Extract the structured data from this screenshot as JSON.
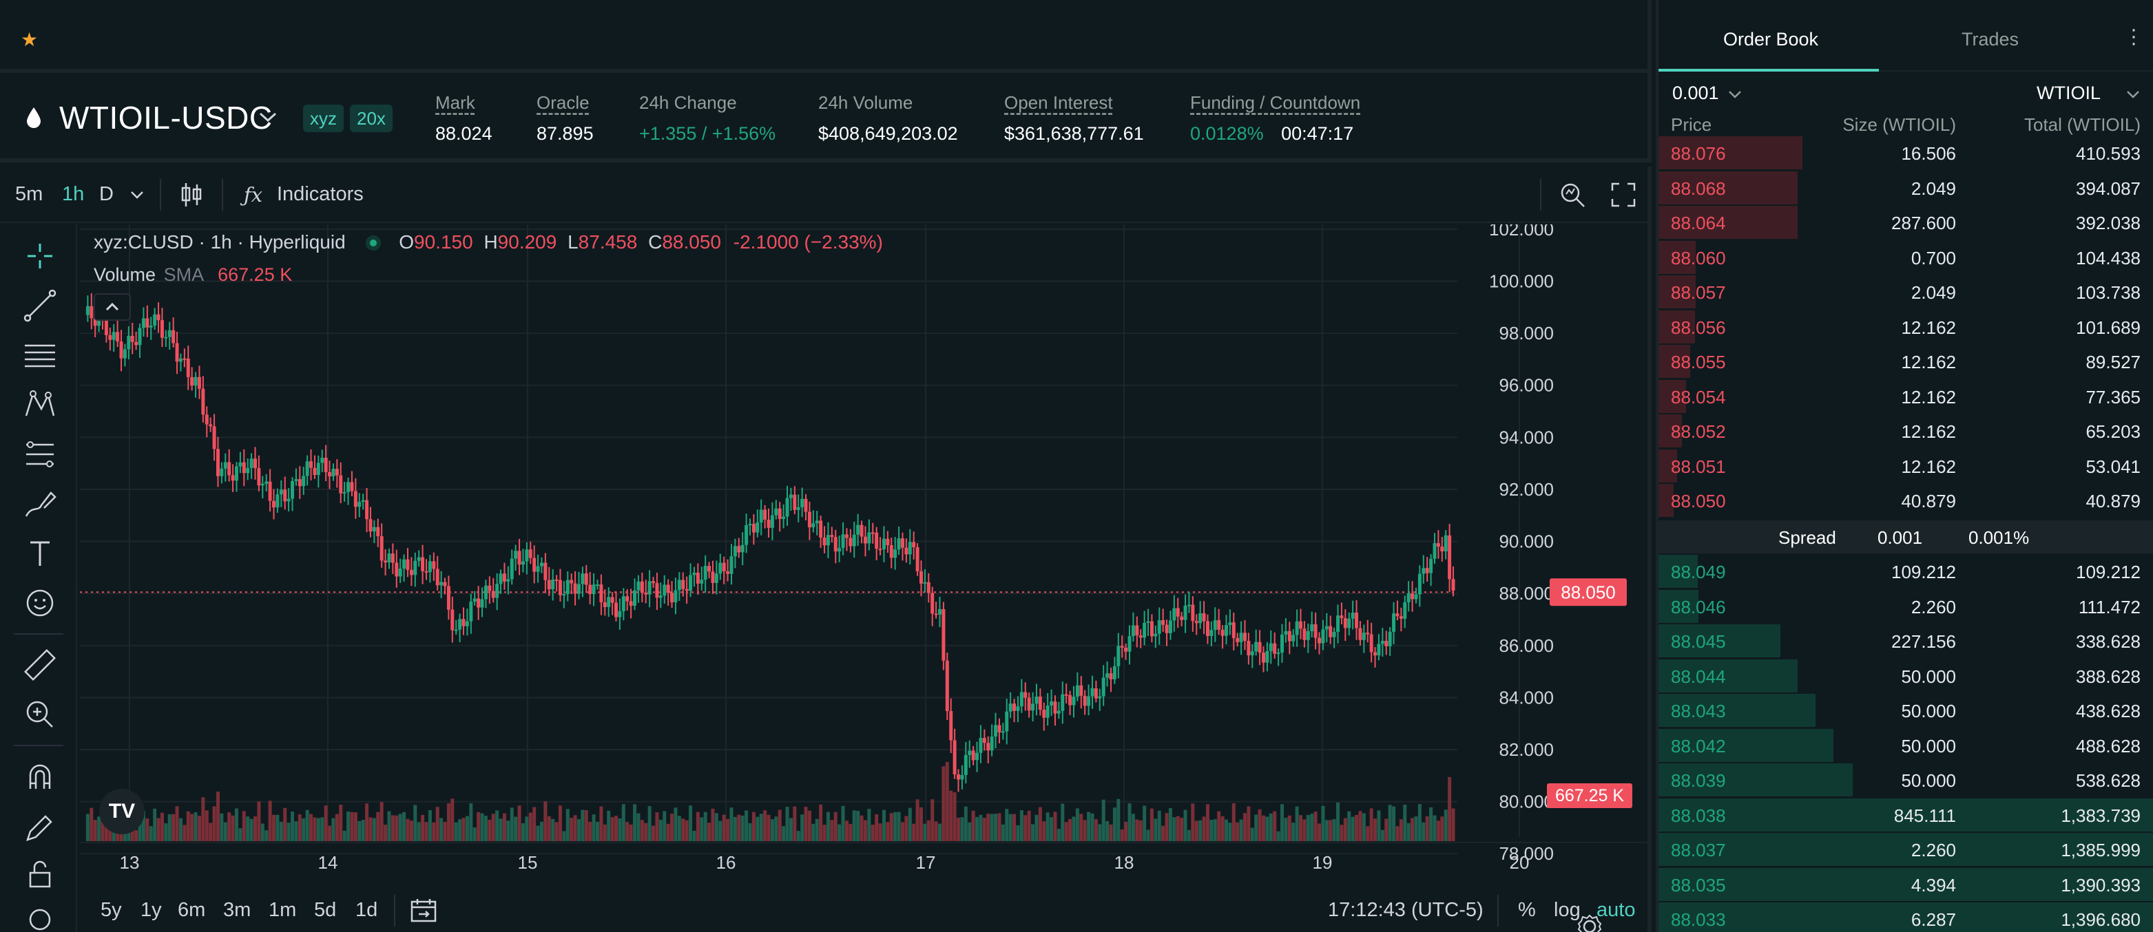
{
  "header": {
    "symbol": "WTIOIL-USDC",
    "badge_dex": "xyz",
    "badge_leverage": "20x",
    "stats": [
      {
        "label": "Mark",
        "value": "88.024",
        "underline": true
      },
      {
        "label": "Oracle",
        "value": "87.895",
        "underline": true
      },
      {
        "label": "24h Change",
        "value": "+1.355 / +1.56%",
        "underline": false
      },
      {
        "label": "24h Volume",
        "value": "$408,649,203.02",
        "underline": false
      },
      {
        "label": "Open Interest",
        "value": "$361,638,777.61",
        "underline": true
      }
    ],
    "funding_label": "Funding / Countdown",
    "funding_rate": "0.0128%",
    "countdown": "00:47:17"
  },
  "toolbar": {
    "intervals": [
      "5m",
      "1h",
      "D"
    ],
    "active_interval": "1h",
    "indicators_label": "Indicators"
  },
  "legend": {
    "title": "xyz:CLUSD · 1h · Hyperliquid",
    "o_label": "O",
    "o": "90.150",
    "h_label": "H",
    "h": "90.209",
    "l_label": "L",
    "l": "87.458",
    "c_label": "C",
    "c": "88.050",
    "change": "-2.1000 (−2.33%)",
    "volume_label": "Volume",
    "sma_label": "SMA",
    "volume_value": "667.25 K"
  },
  "chart_data": {
    "type": "candlestick",
    "y_ticks": [
      "102.000",
      "100.000",
      "98.000",
      "96.000",
      "94.000",
      "92.000",
      "90.000",
      "88.000",
      "86.000",
      "84.000",
      "82.000",
      "80.000",
      "78.000"
    ],
    "ylim": [
      77,
      102.5
    ],
    "x_ticks": [
      "13",
      "14",
      "15",
      "16",
      "17",
      "18",
      "19",
      "20"
    ],
    "last_price_label": "88.050",
    "volume_label": "667.25 K",
    "grid": true
  },
  "bottom_bar": {
    "ranges": [
      "5y",
      "1y",
      "6m",
      "3m",
      "1m",
      "5d",
      "1d"
    ],
    "time": "17:12:43 (UTC-5)",
    "percent": "%",
    "log": "log",
    "auto": "auto"
  },
  "orderbook": {
    "tab_book": "Order Book",
    "tab_trades": "Trades",
    "tick_size": "0.001",
    "asset": "WTIOIL",
    "col_price": "Price",
    "col_size": "Size (WTIOIL)",
    "col_total": "Total (WTIOIL)",
    "asks": [
      {
        "price": "88.076",
        "size": "16.506",
        "total": "410.593",
        "depth": 0.29
      },
      {
        "price": "88.068",
        "size": "2.049",
        "total": "394.087",
        "depth": 0.28
      },
      {
        "price": "88.064",
        "size": "287.600",
        "total": "392.038",
        "depth": 0.28
      },
      {
        "price": "88.060",
        "size": "0.700",
        "total": "104.438",
        "depth": 0.075
      },
      {
        "price": "88.057",
        "size": "2.049",
        "total": "103.738",
        "depth": 0.075
      },
      {
        "price": "88.056",
        "size": "12.162",
        "total": "101.689",
        "depth": 0.073
      },
      {
        "price": "88.055",
        "size": "12.162",
        "total": "89.527",
        "depth": 0.064
      },
      {
        "price": "88.054",
        "size": "12.162",
        "total": "77.365",
        "depth": 0.056
      },
      {
        "price": "88.052",
        "size": "12.162",
        "total": "65.203",
        "depth": 0.047
      },
      {
        "price": "88.051",
        "size": "12.162",
        "total": "53.041",
        "depth": 0.038
      },
      {
        "price": "88.050",
        "size": "40.879",
        "total": "40.879",
        "depth": 0.03
      }
    ],
    "spread_label": "Spread",
    "spread_value": "0.001",
    "spread_pct": "0.001%",
    "bids": [
      {
        "price": "88.049",
        "size": "109.212",
        "total": "109.212",
        "depth": 0.079
      },
      {
        "price": "88.046",
        "size": "2.260",
        "total": "111.472",
        "depth": 0.08
      },
      {
        "price": "88.045",
        "size": "227.156",
        "total": "338.628",
        "depth": 0.245
      },
      {
        "price": "88.044",
        "size": "50.000",
        "total": "388.628",
        "depth": 0.28
      },
      {
        "price": "88.043",
        "size": "50.000",
        "total": "438.628",
        "depth": 0.316
      },
      {
        "price": "88.042",
        "size": "50.000",
        "total": "488.628",
        "depth": 0.352
      },
      {
        "price": "88.039",
        "size": "50.000",
        "total": "538.628",
        "depth": 0.39
      },
      {
        "price": "88.038",
        "size": "845.111",
        "total": "1,383.739",
        "depth": 1.0
      },
      {
        "price": "88.037",
        "size": "2.260",
        "total": "1,385.999",
        "depth": 1.0
      },
      {
        "price": "88.035",
        "size": "4.394",
        "total": "1,390.393",
        "depth": 1.0
      },
      {
        "price": "88.033",
        "size": "6.287",
        "total": "1,396.680",
        "depth": 1.0
      }
    ]
  }
}
